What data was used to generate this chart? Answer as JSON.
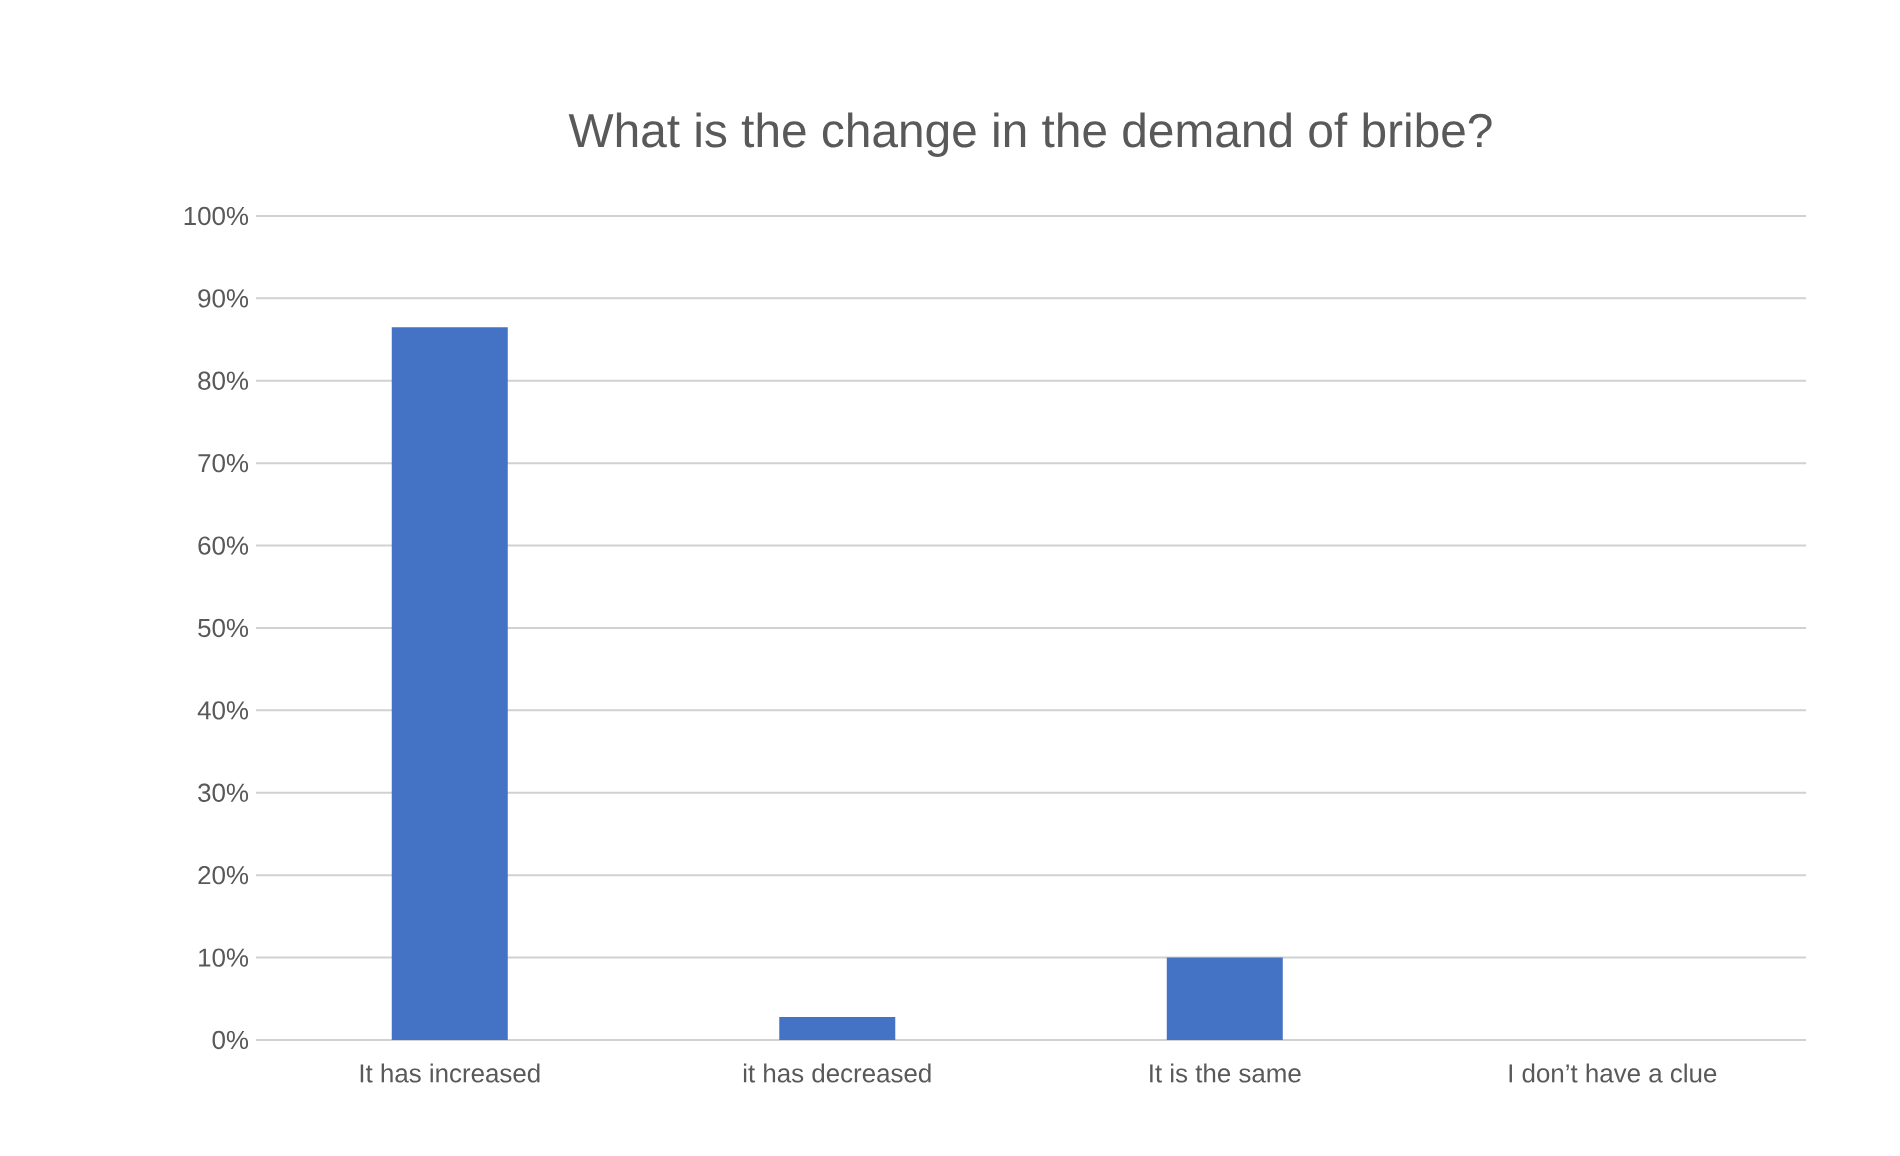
{
  "chart_data": {
    "type": "bar",
    "title": "What is the change in the demand of bribe?",
    "categories": [
      "It has increased",
      "it has decreased",
      "It is the same",
      "I don’t have a clue"
    ],
    "values": [
      86.5,
      2.8,
      10,
      0
    ],
    "color": "#4472c4",
    "ylim": [
      0,
      100
    ],
    "yticks": [
      {
        "value": 0,
        "label": "0%"
      },
      {
        "value": 10,
        "label": "10%"
      },
      {
        "value": 20,
        "label": "20%"
      },
      {
        "value": 30,
        "label": "30%"
      },
      {
        "value": 40,
        "label": "40%"
      },
      {
        "value": 50,
        "label": "50%"
      },
      {
        "value": 60,
        "label": "60%"
      },
      {
        "value": 70,
        "label": "70%"
      },
      {
        "value": 80,
        "label": "80%"
      },
      {
        "value": 90,
        "label": "90%"
      },
      {
        "value": 100,
        "label": "100%"
      }
    ],
    "grid": "y"
  }
}
